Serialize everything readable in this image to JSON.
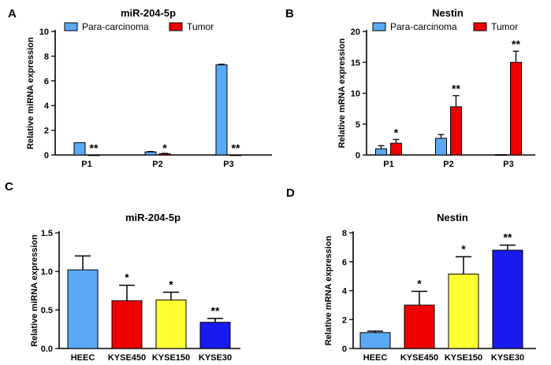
{
  "colors": {
    "para": "#5aa9f4",
    "tumor": "#ee0000",
    "heec": "#5aa9f4",
    "kyse450": "#ee0000",
    "kyse150": "#ffff33",
    "kyse30": "#1a1aee",
    "axis": "#000000"
  },
  "chart_data": [
    {
      "panel": "A",
      "type": "bar",
      "title": "miR-204-5p",
      "ylabel": "Relative miRNA expression",
      "xlabel": "",
      "ylim": [
        0,
        10
      ],
      "yticks": [
        0,
        2,
        4,
        6,
        8,
        10
      ],
      "categories": [
        "P1",
        "P2",
        "P3"
      ],
      "legend": {
        "position": "top",
        "entries": [
          "Para-carcinoma",
          "Tumor"
        ]
      },
      "series": [
        {
          "name": "Para-carcinoma",
          "values": [
            1.0,
            0.25,
            7.3
          ],
          "errors": [
            0,
            0.03,
            0.05
          ],
          "color_key": "para"
        },
        {
          "name": "Tumor",
          "values": [
            0.0,
            0.1,
            0.0
          ],
          "errors": [
            0,
            0.03,
            0
          ],
          "color_key": "tumor"
        }
      ],
      "annotations": [
        {
          "category": 0,
          "series": 1,
          "text": "**"
        },
        {
          "category": 1,
          "series": 1,
          "text": "*"
        },
        {
          "category": 2,
          "series": 1,
          "text": "**"
        }
      ]
    },
    {
      "panel": "B",
      "type": "bar",
      "title": "Nestin",
      "ylabel": "Relative mRNA expression",
      "xlabel": "",
      "ylim": [
        0,
        20
      ],
      "yticks": [
        0,
        5,
        10,
        15,
        20
      ],
      "categories": [
        "P1",
        "P2",
        "P3"
      ],
      "legend": {
        "position": "top",
        "entries": [
          "Para-carcinoma",
          "Tumor"
        ]
      },
      "series": [
        {
          "name": "Para-carcinoma",
          "values": [
            1.0,
            2.7,
            0.05
          ],
          "errors": [
            0.5,
            0.6,
            0
          ],
          "color_key": "para"
        },
        {
          "name": "Tumor",
          "values": [
            1.9,
            7.8,
            15.0
          ],
          "errors": [
            0.6,
            1.8,
            1.8
          ],
          "color_key": "tumor"
        }
      ],
      "annotations": [
        {
          "category": 0,
          "series": 1,
          "text": "*"
        },
        {
          "category": 1,
          "series": 1,
          "text": "**"
        },
        {
          "category": 2,
          "series": 1,
          "text": "**"
        }
      ]
    },
    {
      "panel": "C",
      "type": "bar",
      "title": "miR-204-5p",
      "ylabel": "Relative miRNA expression",
      "xlabel": "",
      "ylim": [
        0,
        1.5
      ],
      "yticks": [
        0.0,
        0.5,
        1.0,
        1.5
      ],
      "tick_decimals": 1,
      "categories": [
        "HEEC",
        "KYSE450",
        "KYSE150",
        "KYSE30"
      ],
      "values": [
        1.02,
        0.62,
        0.63,
        0.34
      ],
      "errors": [
        0.18,
        0.2,
        0.1,
        0.05
      ],
      "color_keys": [
        "heec",
        "kyse450",
        "kyse150",
        "kyse30"
      ],
      "annotations": [
        "",
        "*",
        "*",
        "**"
      ]
    },
    {
      "panel": "D",
      "type": "bar",
      "title": "Nestin",
      "ylabel": "Relative mRNA expression",
      "xlabel": "",
      "ylim": [
        0,
        8
      ],
      "yticks": [
        0,
        2,
        4,
        6,
        8
      ],
      "categories": [
        "HEEC",
        "KYSE450",
        "KYSE150",
        "KYSE30"
      ],
      "values": [
        1.1,
        3.0,
        5.15,
        6.8
      ],
      "errors": [
        0.1,
        0.95,
        1.2,
        0.35
      ],
      "color_keys": [
        "heec",
        "kyse450",
        "kyse150",
        "kyse30"
      ],
      "annotations": [
        "",
        "*",
        "*",
        "**"
      ]
    }
  ]
}
